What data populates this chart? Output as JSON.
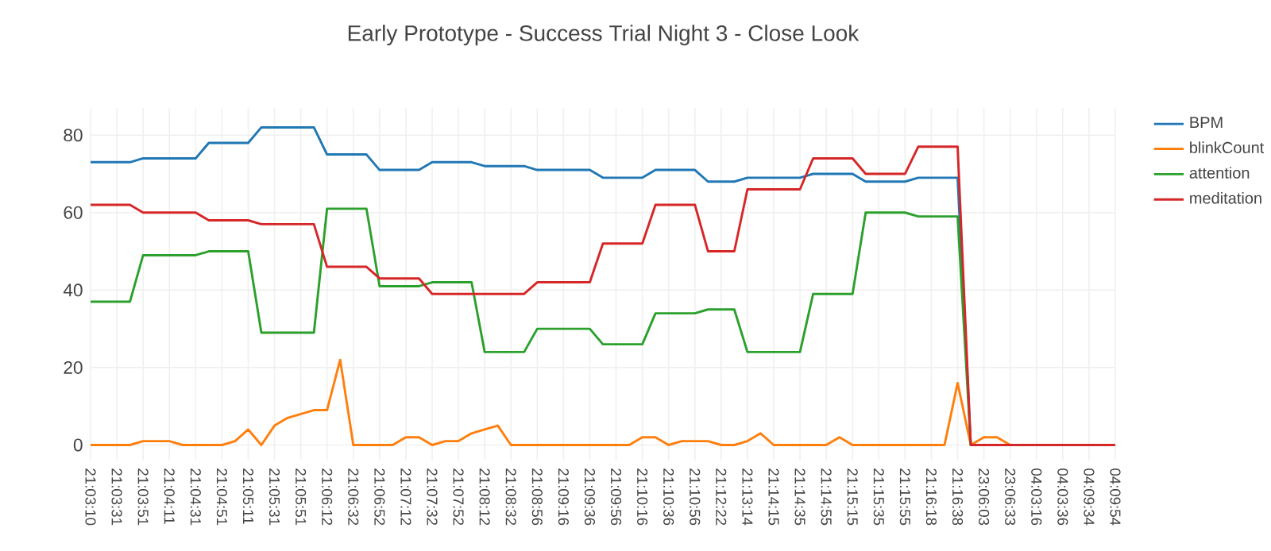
{
  "chart_data": {
    "type": "line",
    "title": "Early Prototype - Success Trial Night 3 - Close Look",
    "categories": [
      "21:03:10",
      null,
      "21:03:31",
      null,
      "21:03:51",
      null,
      "21:04:11",
      null,
      "21:04:31",
      null,
      "21:04:51",
      null,
      "21:05:11",
      null,
      "21:05:31",
      null,
      "21:05:51",
      null,
      "21:06:12",
      null,
      "21:06:32",
      null,
      "21:06:52",
      null,
      "21:07:12",
      null,
      "21:07:32",
      null,
      "21:07:52",
      null,
      "21:08:12",
      null,
      "21:08:32",
      null,
      "21:08:56",
      null,
      "21:09:16",
      null,
      "21:09:36",
      null,
      "21:09:56",
      null,
      "21:10:16",
      null,
      "21:10:36",
      null,
      "21:10:56",
      null,
      "21:12:22",
      null,
      "21:13:14",
      null,
      "21:14:15",
      null,
      "21:14:35",
      null,
      "21:14:55",
      null,
      "21:15:15",
      null,
      "21:15:35",
      null,
      "21:15:55",
      null,
      "21:16:18",
      null,
      "21:16:38",
      null,
      "23:06:03",
      null,
      "23:06:33",
      null,
      "04:03:16",
      null,
      "04:03:36",
      null,
      "04:09:34",
      null,
      "04:09:54"
    ],
    "series": [
      {
        "name": "BPM",
        "color": "#1f77b4",
        "values": [
          73,
          73,
          73,
          73,
          74,
          74,
          74,
          74,
          74,
          78,
          78,
          78,
          78,
          82,
          82,
          82,
          82,
          82,
          75,
          75,
          75,
          75,
          71,
          71,
          71,
          71,
          73,
          73,
          73,
          73,
          72,
          72,
          72,
          72,
          71,
          71,
          71,
          71,
          71,
          69,
          69,
          69,
          69,
          71,
          71,
          71,
          71,
          68,
          68,
          68,
          69,
          69,
          69,
          69,
          69,
          70,
          70,
          70,
          70,
          68,
          68,
          68,
          68,
          69,
          69,
          69,
          69,
          0,
          null,
          null,
          null,
          null,
          null,
          null,
          null,
          null,
          null,
          null,
          null
        ]
      },
      {
        "name": "blinkCount",
        "color": "#ff7f0e",
        "values": [
          0,
          0,
          0,
          0,
          1,
          1,
          1,
          0,
          0,
          0,
          0,
          1,
          4,
          0,
          5,
          7,
          8,
          9,
          9,
          22,
          0,
          0,
          0,
          0,
          2,
          2,
          0,
          1,
          1,
          3,
          4,
          5,
          0,
          0,
          0,
          0,
          0,
          0,
          0,
          0,
          0,
          0,
          2,
          2,
          0,
          1,
          1,
          1,
          0,
          0,
          1,
          3,
          0,
          0,
          0,
          0,
          0,
          2,
          0,
          0,
          0,
          0,
          0,
          0,
          0,
          0,
          16,
          0,
          2,
          2,
          0,
          0,
          null,
          null,
          null,
          null,
          null,
          null,
          null
        ]
      },
      {
        "name": "attention",
        "color": "#2ca02c",
        "values": [
          37,
          37,
          37,
          37,
          49,
          49,
          49,
          49,
          49,
          50,
          50,
          50,
          50,
          29,
          29,
          29,
          29,
          29,
          61,
          61,
          61,
          61,
          41,
          41,
          41,
          41,
          42,
          42,
          42,
          42,
          24,
          24,
          24,
          24,
          30,
          30,
          30,
          30,
          30,
          26,
          26,
          26,
          26,
          34,
          34,
          34,
          34,
          35,
          35,
          35,
          24,
          24,
          24,
          24,
          24,
          39,
          39,
          39,
          39,
          60,
          60,
          60,
          60,
          59,
          59,
          59,
          59,
          0,
          0,
          null,
          null,
          null,
          null,
          null,
          null,
          null,
          null,
          null,
          null
        ]
      },
      {
        "name": "meditation",
        "color": "#d62728",
        "values": [
          62,
          62,
          62,
          62,
          60,
          60,
          60,
          60,
          60,
          58,
          58,
          58,
          58,
          57,
          57,
          57,
          57,
          57,
          46,
          46,
          46,
          46,
          43,
          43,
          43,
          43,
          39,
          39,
          39,
          39,
          39,
          39,
          39,
          39,
          42,
          42,
          42,
          42,
          42,
          52,
          52,
          52,
          52,
          62,
          62,
          62,
          62,
          50,
          50,
          50,
          66,
          66,
          66,
          66,
          66,
          74,
          74,
          74,
          74,
          70,
          70,
          70,
          70,
          77,
          77,
          77,
          77,
          0,
          0,
          0,
          0,
          0,
          0,
          0,
          0,
          0,
          0,
          0,
          0
        ]
      }
    ],
    "ylim": [
      -4,
      87
    ],
    "yticks": [
      0,
      20,
      40,
      60,
      80
    ],
    "grid": true,
    "legend": "top right"
  }
}
